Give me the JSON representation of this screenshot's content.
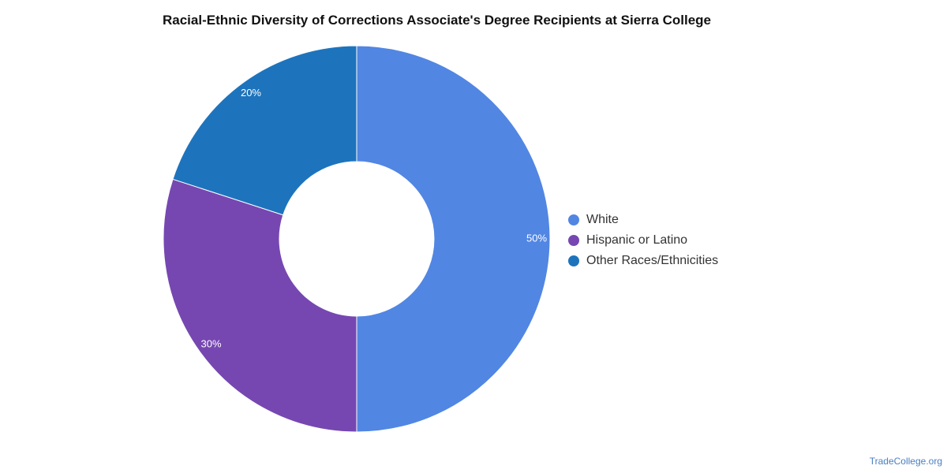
{
  "chart_data": {
    "type": "pie",
    "variant": "donut",
    "title": "Racial-Ethnic Diversity of Corrections Associate's Degree Recipients at Sierra College",
    "categories": [
      "White",
      "Hispanic or Latino",
      "Other Races/Ethnicities"
    ],
    "values": [
      50,
      30,
      20
    ],
    "value_labels": [
      "50%",
      "30%",
      "20%"
    ],
    "colors": [
      "#5186e3",
      "#7647b1",
      "#1d74bd"
    ],
    "legend_placement": "right",
    "start_angle": "top",
    "direction": "clockwise"
  },
  "source": "TradeCollege.org"
}
